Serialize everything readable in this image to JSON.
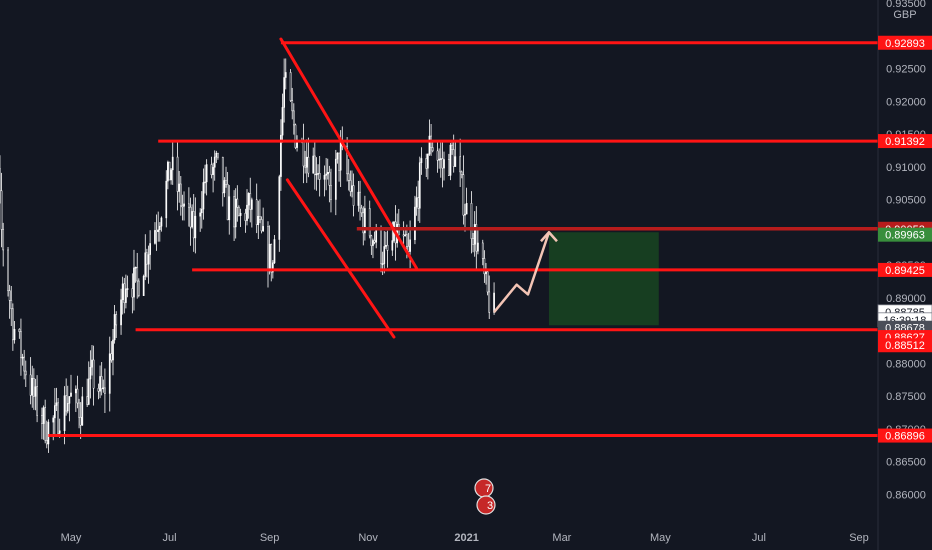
{
  "chart_data": {
    "type": "candlestick",
    "currency": "GBP",
    "y_range": [
      0.855,
      0.935
    ],
    "y_ticks": [
      "0.93500",
      "0.92500",
      "0.92000",
      "0.91500",
      "0.91000",
      "0.90500",
      "0.90000",
      "0.89500",
      "0.89000",
      "0.88500",
      "0.88000",
      "0.87500",
      "0.87000",
      "0.86500",
      "0.86000"
    ],
    "x_ticks": [
      {
        "label": "May",
        "date": "2020-05-01"
      },
      {
        "label": "Jul",
        "date": "2020-07-01"
      },
      {
        "label": "Sep",
        "date": "2020-09-01"
      },
      {
        "label": "Nov",
        "date": "2020-11-01"
      },
      {
        "label": "2021",
        "date": "2021-01-01"
      },
      {
        "label": "Mar",
        "date": "2021-03-01"
      },
      {
        "label": "May",
        "date": "2021-05-01"
      },
      {
        "label": "Jul",
        "date": "2021-07-01"
      },
      {
        "label": "Sep",
        "date": "2021-09-01"
      }
    ],
    "price_path": [
      [
        "2020-03-06",
        0.92
      ],
      [
        "2020-03-12",
        0.928
      ],
      [
        "2020-03-19",
        0.9
      ],
      [
        "2020-03-26",
        0.886
      ],
      [
        "2020-04-02",
        0.88
      ],
      [
        "2020-04-09",
        0.874
      ],
      [
        "2020-04-16",
        0.87
      ],
      [
        "2020-04-23",
        0.872
      ],
      [
        "2020-04-30",
        0.875
      ],
      [
        "2020-05-07",
        0.873
      ],
      [
        "2020-05-14",
        0.878
      ],
      [
        "2020-05-21",
        0.875
      ],
      [
        "2020-05-28",
        0.885
      ],
      [
        "2020-06-04",
        0.893
      ],
      [
        "2020-06-11",
        0.892
      ],
      [
        "2020-06-18",
        0.898
      ],
      [
        "2020-06-25",
        0.903
      ],
      [
        "2020-07-02",
        0.91
      ],
      [
        "2020-07-09",
        0.904
      ],
      [
        "2020-07-16",
        0.9
      ],
      [
        "2020-07-23",
        0.908
      ],
      [
        "2020-07-30",
        0.91
      ],
      [
        "2020-08-06",
        0.904
      ],
      [
        "2020-08-13",
        0.902
      ],
      [
        "2020-08-20",
        0.904
      ],
      [
        "2020-08-27",
        0.899
      ],
      [
        "2020-09-03",
        0.895
      ],
      [
        "2020-09-10",
        0.923
      ],
      [
        "2020-09-17",
        0.915
      ],
      [
        "2020-09-24",
        0.912
      ],
      [
        "2020-10-01",
        0.91
      ],
      [
        "2020-10-08",
        0.906
      ],
      [
        "2020-10-15",
        0.912
      ],
      [
        "2020-10-22",
        0.906
      ],
      [
        "2020-10-29",
        0.902
      ],
      [
        "2020-11-05",
        0.899
      ],
      [
        "2020-11-12",
        0.896
      ],
      [
        "2020-11-19",
        0.9
      ],
      [
        "2020-11-26",
        0.896
      ],
      [
        "2020-12-03",
        0.908
      ],
      [
        "2020-12-10",
        0.914
      ],
      [
        "2020-12-17",
        0.91
      ],
      [
        "2020-12-24",
        0.912
      ],
      [
        "2020-12-31",
        0.904
      ],
      [
        "2021-01-07",
        0.899
      ],
      [
        "2021-01-14",
        0.89
      ],
      [
        "2021-01-18",
        0.888
      ]
    ],
    "horizontal_levels": [
      {
        "price": 0.92893,
        "from": "2020-09-08",
        "to": "2021-09-30"
      },
      {
        "price": 0.91392,
        "from": "2020-06-24",
        "to": "2021-09-30"
      },
      {
        "price": 0.89425,
        "from": "2020-07-15",
        "to": "2021-09-30"
      },
      {
        "price": 0.88512,
        "from": "2020-06-10",
        "to": "2021-09-30"
      },
      {
        "price": 0.86896,
        "from": "2020-04-17",
        "to": "2021-09-30"
      }
    ],
    "resistance_line": {
      "price": 0.90053,
      "from": "2020-10-25",
      "to": "2021-09-30"
    },
    "channel_lines": [
      [
        [
          "2020-09-08",
          0.9295
        ],
        [
          "2020-12-01",
          0.8945
        ]
      ],
      [
        [
          "2020-09-12",
          0.908
        ],
        [
          "2020-11-17",
          0.884
        ]
      ]
    ],
    "projection_path": [
      [
        "2021-01-18",
        0.8878
      ],
      [
        "2021-02-01",
        0.892
      ],
      [
        "2021-02-08",
        0.8905
      ],
      [
        "2021-02-21",
        0.9
      ]
    ],
    "target_zone": {
      "from": "2021-02-21",
      "to": "2021-04-30",
      "price_high": 0.9,
      "price_low": 0.8858
    },
    "price_tags": [
      {
        "label": "0.92893",
        "price": 0.92893,
        "style": "red"
      },
      {
        "label": "0.91392",
        "price": 0.91392,
        "style": "red"
      },
      {
        "label": "0.90053",
        "price": 0.90053,
        "style": "darkred"
      },
      {
        "label": "0.89963",
        "price": 0.89963,
        "style": "green"
      },
      {
        "label": "0.89425",
        "price": 0.89425,
        "style": "red"
      },
      {
        "label": "0.88785",
        "price": 0.88785,
        "style": "white"
      },
      {
        "label": "16:39:18",
        "price": 0.88663,
        "style": "white"
      },
      {
        "label": "0.88678",
        "price": 0.88542,
        "style": "gray"
      },
      {
        "label": "0.88627",
        "price": 0.884,
        "style": "red"
      },
      {
        "label": "0.88512",
        "price": 0.88275,
        "style": "red"
      },
      {
        "label": "0.86896",
        "price": 0.86896,
        "style": "red"
      }
    ],
    "event_badges": [
      "7",
      "3"
    ],
    "colors": {
      "background": "#131722",
      "candle": "#ffffff",
      "level_line": "#ff1414",
      "resistance_line": "#b71c1c",
      "projection": "#f3c4b5",
      "zone": "#1b5e20",
      "axis_text": "#b2b5be",
      "tag_red": "#ff1414",
      "tag_darkred": "#b71c1c",
      "tag_green": "#388e3c",
      "tag_gray": "#4a4e58"
    }
  }
}
